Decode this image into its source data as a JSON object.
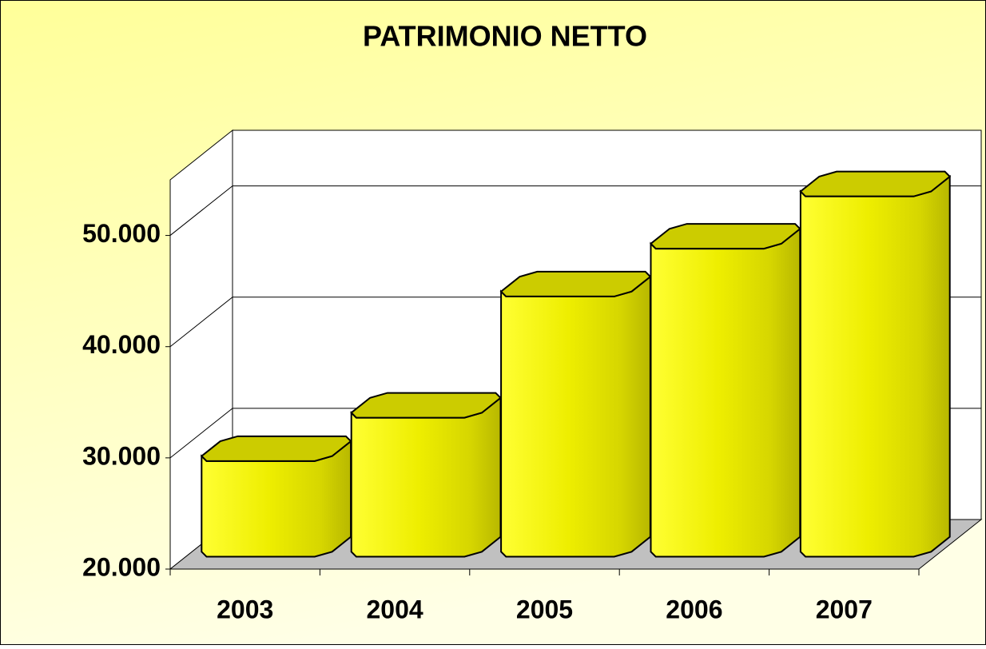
{
  "chart_data": {
    "type": "bar3d",
    "title": "PATRIMONIO NETTO",
    "categories": [
      "2003",
      "2004",
      "2005",
      "2006",
      "2007"
    ],
    "values": [
      28600,
      32500,
      43400,
      47700,
      52400
    ],
    "color": "#ffff00",
    "ylim": [
      20000,
      55000
    ],
    "yticks": [
      {
        "value": 20000,
        "label": "20.000"
      },
      {
        "value": 30000,
        "label": "30.000"
      },
      {
        "value": 40000,
        "label": "40.000"
      },
      {
        "value": 50000,
        "label": "50.000"
      }
    ],
    "grid": true
  }
}
